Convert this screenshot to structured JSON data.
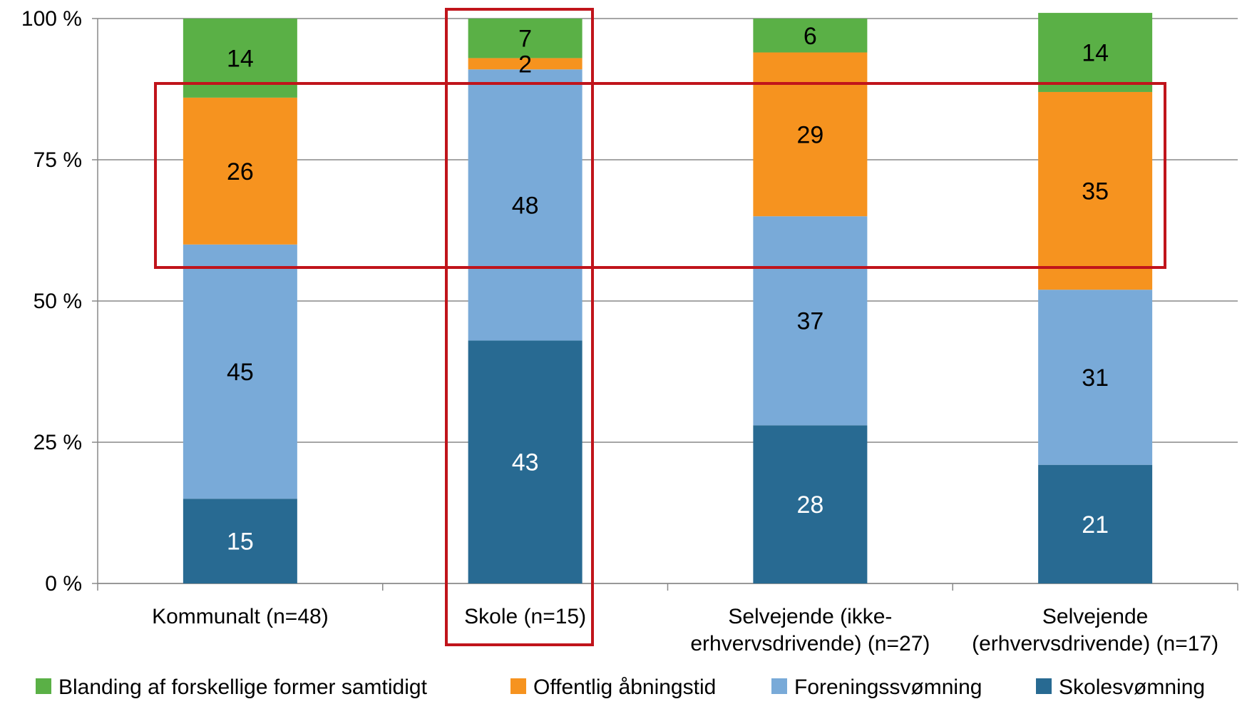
{
  "chart_data": {
    "type": "bar",
    "stacked": true,
    "percent_stacked": true,
    "categories": [
      [
        "Kommunalt (n=48)"
      ],
      [
        "Skole (n=15)"
      ],
      [
        "Selvejende (ikke-",
        "erhvervsdrivende) (n=27)"
      ],
      [
        "Selvejende",
        "(erhvervsdrivende) (n=17)"
      ]
    ],
    "series": [
      {
        "name": "Skolesvømning",
        "color": "#286a92",
        "label_color": "#ffffff",
        "values": [
          15,
          43,
          28,
          21
        ]
      },
      {
        "name": "Foreningssvømning",
        "color": "#79aad8",
        "label_color": "#000000",
        "values": [
          45,
          48,
          37,
          31
        ]
      },
      {
        "name": "Offentlig åbningstid",
        "color": "#f6931f",
        "label_color": "#000000",
        "values": [
          26,
          2,
          29,
          35
        ]
      },
      {
        "name": "Blanding af forskellige former samtidigt",
        "color": "#5ab046",
        "label_color": "#000000",
        "values": [
          14,
          7,
          6,
          14
        ]
      }
    ],
    "legend_order": [
      3,
      2,
      1,
      0
    ],
    "ylim": [
      0,
      100
    ],
    "yticks": [
      0,
      25,
      50,
      75,
      100
    ],
    "ytick_labels": [
      "0 %",
      "25 %",
      "50 %",
      "75 %",
      "100 %"
    ],
    "grid": true,
    "legend_position": "bottom",
    "highlight_color": "#c0141b"
  }
}
